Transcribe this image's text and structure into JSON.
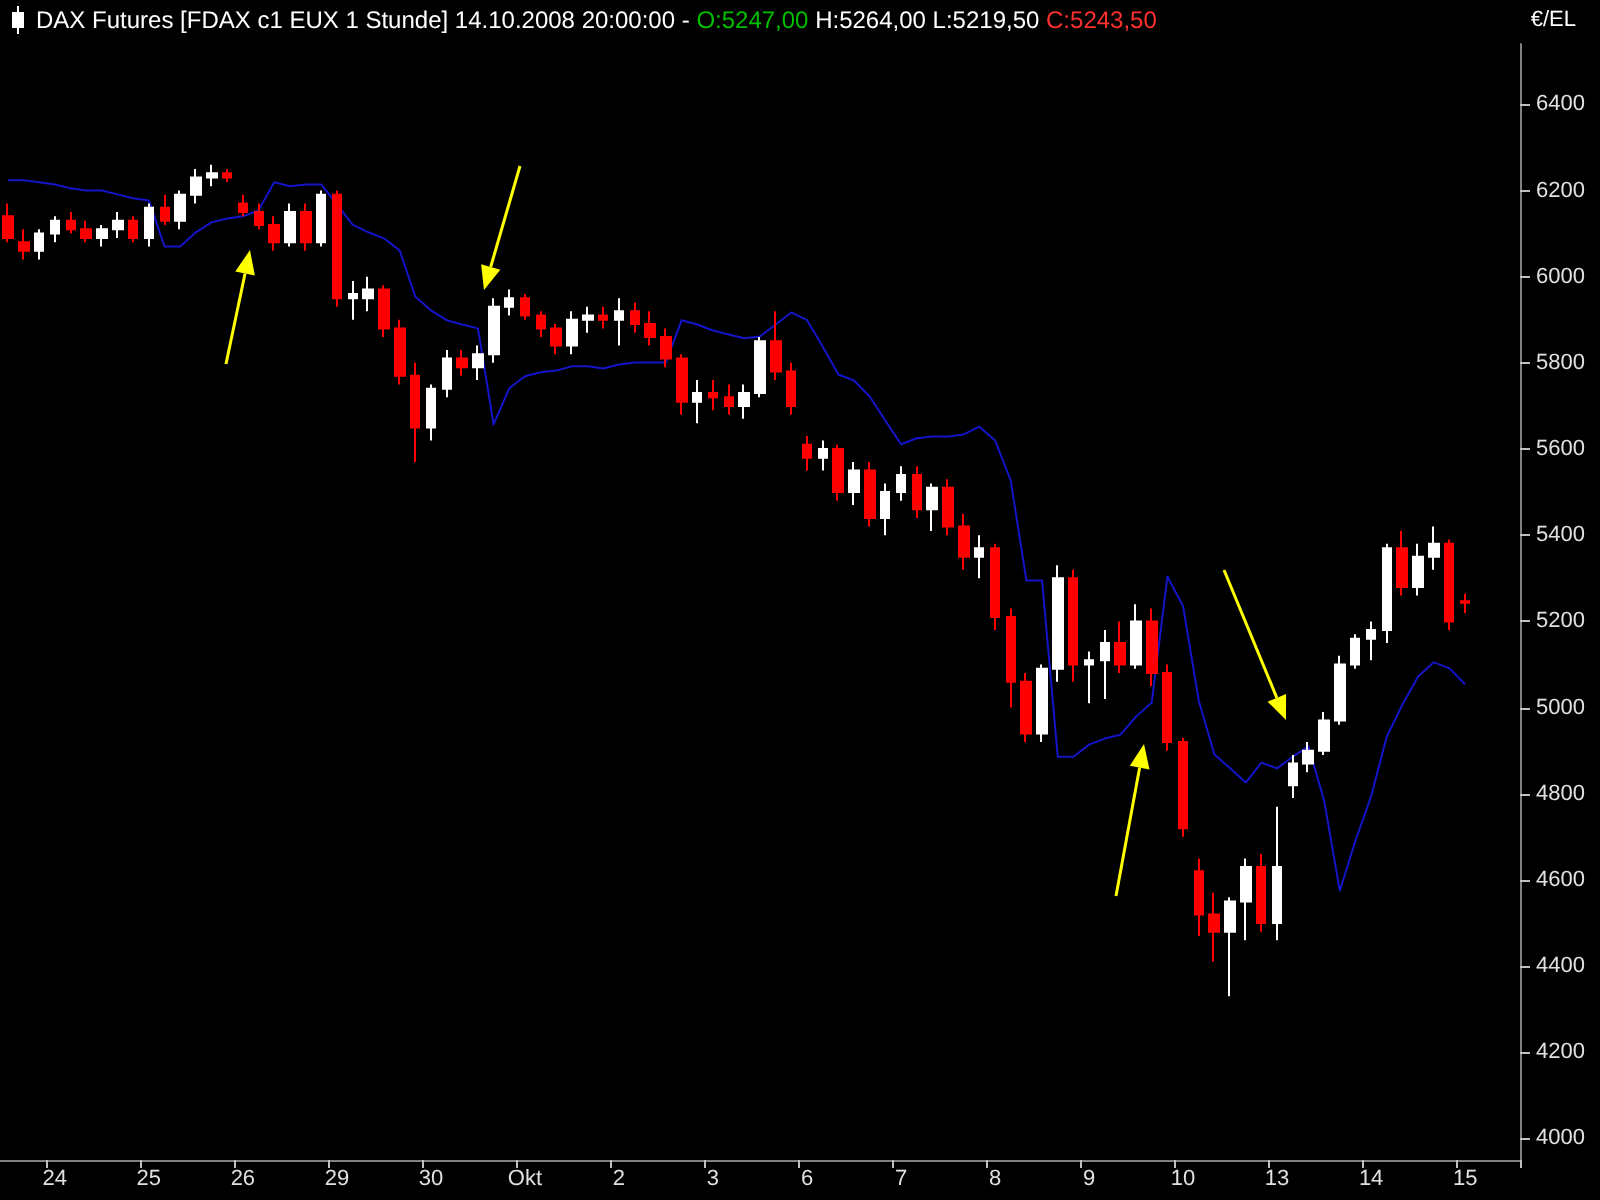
{
  "chart_data": {
    "type": "candlestick",
    "title": "DAX Futures [FDAX c1 EUX  1 Stunde] 14.10.2008 20:00:00 -",
    "annotations": [
      "O:5247,00",
      "H:5264,00",
      "L:5219,50",
      "C:5243,50"
    ],
    "ylabel": "€/EL",
    "categories": [
      null,
      null,
      null,
      "24",
      null,
      null,
      null,
      null,
      null,
      "25",
      null,
      null,
      null,
      null,
      null,
      "26",
      null,
      null,
      null,
      null,
      null,
      "29",
      null,
      null,
      null,
      null,
      null,
      "30",
      null,
      null,
      null,
      null,
      null,
      "Okt",
      null,
      null,
      null,
      null,
      null,
      "2",
      null,
      null,
      null,
      null,
      null,
      "3",
      null,
      null,
      null,
      null,
      null,
      "6",
      null,
      null,
      null,
      null,
      null,
      "7",
      null,
      null,
      null,
      null,
      null,
      "8",
      null,
      null,
      null,
      null,
      null,
      "9",
      null,
      null,
      null,
      null,
      null,
      "10",
      null,
      null,
      null,
      null,
      null,
      "13",
      null,
      null,
      null,
      null,
      null,
      "14",
      null,
      null,
      null,
      null,
      null,
      "15",
      null,
      null,
      null
    ],
    "ohlc": [
      [
        6140,
        6170,
        6080,
        6090
      ],
      [
        6080,
        6110,
        6040,
        6060
      ],
      [
        6060,
        6110,
        6040,
        6100
      ],
      [
        6100,
        6140,
        6080,
        6130
      ],
      [
        6130,
        6150,
        6100,
        6110
      ],
      [
        6110,
        6130,
        6080,
        6090
      ],
      [
        6090,
        6120,
        6070,
        6110
      ],
      [
        6110,
        6150,
        6090,
        6130
      ],
      [
        6130,
        6140,
        6080,
        6090
      ],
      [
        6090,
        6170,
        6070,
        6160
      ],
      [
        6160,
        6190,
        6120,
        6130
      ],
      [
        6130,
        6200,
        6110,
        6190
      ],
      [
        6190,
        6250,
        6170,
        6230
      ],
      [
        6230,
        6260,
        6210,
        6240
      ],
      [
        6240,
        6250,
        6220,
        6230
      ],
      [
        6170,
        6190,
        6140,
        6150
      ],
      [
        6150,
        6170,
        6110,
        6120
      ],
      [
        6120,
        6140,
        6060,
        6080
      ],
      [
        6080,
        6170,
        6070,
        6150
      ],
      [
        6150,
        6170,
        6060,
        6080
      ],
      [
        6080,
        6200,
        6070,
        6190
      ],
      [
        6190,
        6200,
        5930,
        5950
      ],
      [
        5950,
        5990,
        5900,
        5960
      ],
      [
        5950,
        6000,
        5920,
        5970
      ],
      [
        5970,
        5980,
        5860,
        5880
      ],
      [
        5880,
        5900,
        5750,
        5770
      ],
      [
        5770,
        5800,
        5570,
        5650
      ],
      [
        5650,
        5750,
        5620,
        5740
      ],
      [
        5740,
        5830,
        5720,
        5810
      ],
      [
        5810,
        5830,
        5770,
        5790
      ],
      [
        5790,
        5840,
        5760,
        5820
      ],
      [
        5820,
        5950,
        5800,
        5930
      ],
      [
        5930,
        5970,
        5910,
        5950
      ],
      [
        5950,
        5960,
        5900,
        5910
      ],
      [
        5910,
        5920,
        5860,
        5880
      ],
      [
        5880,
        5890,
        5820,
        5840
      ],
      [
        5840,
        5920,
        5820,
        5900
      ],
      [
        5900,
        5930,
        5870,
        5910
      ],
      [
        5910,
        5930,
        5880,
        5900
      ],
      [
        5900,
        5950,
        5840,
        5920
      ],
      [
        5920,
        5940,
        5870,
        5890
      ],
      [
        5890,
        5920,
        5840,
        5860
      ],
      [
        5860,
        5880,
        5790,
        5810
      ],
      [
        5810,
        5820,
        5680,
        5710
      ],
      [
        5710,
        5760,
        5660,
        5730
      ],
      [
        5730,
        5760,
        5690,
        5720
      ],
      [
        5720,
        5750,
        5680,
        5700
      ],
      [
        5700,
        5750,
        5670,
        5730
      ],
      [
        5730,
        5860,
        5720,
        5850
      ],
      [
        5850,
        5920,
        5760,
        5780
      ],
      [
        5780,
        5800,
        5680,
        5700
      ],
      [
        5610,
        5630,
        5550,
        5580
      ],
      [
        5580,
        5620,
        5550,
        5600
      ],
      [
        5600,
        5610,
        5480,
        5500
      ],
      [
        5500,
        5570,
        5470,
        5550
      ],
      [
        5550,
        5570,
        5420,
        5440
      ],
      [
        5440,
        5520,
        5400,
        5500
      ],
      [
        5500,
        5560,
        5480,
        5540
      ],
      [
        5540,
        5560,
        5440,
        5460
      ],
      [
        5460,
        5520,
        5410,
        5510
      ],
      [
        5510,
        5530,
        5400,
        5420
      ],
      [
        5420,
        5450,
        5320,
        5350
      ],
      [
        5350,
        5400,
        5300,
        5370
      ],
      [
        5370,
        5380,
        5180,
        5210
      ],
      [
        5210,
        5230,
        5000,
        5060
      ],
      [
        5060,
        5080,
        4920,
        4940
      ],
      [
        4940,
        5100,
        4920,
        5090
      ],
      [
        5090,
        5330,
        5060,
        5300
      ],
      [
        5300,
        5320,
        5060,
        5100
      ],
      [
        5100,
        5130,
        5010,
        5110
      ],
      [
        5110,
        5180,
        5020,
        5150
      ],
      [
        5150,
        5200,
        5080,
        5100
      ],
      [
        5100,
        5240,
        5090,
        5200
      ],
      [
        5200,
        5230,
        5050,
        5080
      ],
      [
        5080,
        5100,
        4900,
        4920
      ],
      [
        4920,
        4930,
        4700,
        4720
      ],
      [
        4620,
        4650,
        4470,
        4520
      ],
      [
        4520,
        4570,
        4410,
        4480
      ],
      [
        4480,
        4560,
        4330,
        4550
      ],
      [
        4550,
        4650,
        4460,
        4630
      ],
      [
        4630,
        4660,
        4480,
        4500
      ],
      [
        4500,
        4770,
        4460,
        4630
      ],
      [
        4820,
        4890,
        4790,
        4870
      ],
      [
        4870,
        4920,
        4850,
        4900
      ],
      [
        4900,
        4990,
        4890,
        4970
      ],
      [
        4970,
        5120,
        4960,
        5100
      ],
      [
        5100,
        5170,
        5090,
        5160
      ],
      [
        5160,
        5200,
        5110,
        5180
      ],
      [
        5180,
        5380,
        5150,
        5370
      ],
      [
        5370,
        5410,
        5260,
        5280
      ],
      [
        5280,
        5380,
        5260,
        5350
      ],
      [
        5350,
        5420,
        5320,
        5380
      ],
      [
        5380,
        5390,
        5180,
        5200
      ],
      [
        5247,
        5264,
        5219.5,
        5243.5
      ],
      null,
      null,
      null
    ],
    "colors": [
      "#ff0000",
      "#ff0000",
      "#ffffff",
      "#ffffff",
      "#ff0000",
      "#ff0000",
      "#ffffff",
      "#ffffff",
      "#ff0000",
      "#ffffff",
      "#ff0000",
      "#ffffff",
      "#ffffff",
      "#ffffff",
      "#ff0000",
      "#ff0000",
      "#ff0000",
      "#ff0000",
      "#ffffff",
      "#ff0000",
      "#ffffff",
      "#ff0000",
      "#ffffff",
      "#ffffff",
      "#ff0000",
      "#ff0000",
      "#ff0000",
      "#ffffff",
      "#ffffff",
      "#ff0000",
      "#ffffff",
      "#ffffff",
      "#ffffff",
      "#ff0000",
      "#ff0000",
      "#ff0000",
      "#ffffff",
      "#ffffff",
      "#ff0000",
      "#ffffff",
      "#ff0000",
      "#ff0000",
      "#ff0000",
      "#ff0000",
      "#ffffff",
      "#ff0000",
      "#ff0000",
      "#ffffff",
      "#ffffff",
      "#ff0000",
      "#ff0000",
      "#ff0000",
      "#ffffff",
      "#ff0000",
      "#ffffff",
      "#ff0000",
      "#ffffff",
      "#ffffff",
      "#ff0000",
      "#ffffff",
      "#ff0000",
      "#ff0000",
      "#ffffff",
      "#ff0000",
      "#ff0000",
      "#ff0000",
      "#ffffff",
      "#ffffff",
      "#ff0000",
      "#ffffff",
      "#ffffff",
      "#ff0000",
      "#ffffff",
      "#ff0000",
      "#ff0000",
      "#ff0000",
      "#ff0000",
      "#ff0000",
      "#ffffff",
      "#ffffff",
      "#ff0000",
      "#ffffff",
      "#ffffff",
      "#ffffff",
      "#ffffff",
      "#ffffff",
      "#ffffff",
      "#ffffff",
      "#ffffff",
      "#ff0000",
      "#ffffff",
      "#ffffff",
      "#ff0000",
      "#ff0000",
      null,
      null,
      null
    ],
    "series": [
      {
        "type": "line",
        "color": "#1414c8",
        "values": [
          6224,
          6224,
          6219,
          6214,
          6205,
          6200,
          6200,
          6191,
          6182,
          6177,
          6070,
          6070,
          6103,
          6126,
          6135,
          6140,
          6154,
          6219,
          6210,
          6214,
          6214,
          6168,
          6121,
          6103,
          6089,
          6061,
          5954,
          5922,
          5899,
          5889,
          5880,
          5657,
          5741,
          5769,
          5778,
          5782,
          5792,
          5792,
          5787,
          5796,
          5801,
          5801,
          5801,
          5899,
          5889,
          5875,
          5866,
          5857,
          5861,
          5889,
          5917,
          5899,
          5838,
          5773,
          5759,
          5722,
          5666,
          5611,
          5625,
          5629,
          5629,
          5634,
          5652,
          5620,
          5527,
          5295,
          5295,
          4886,
          4886,
          4914,
          4928,
          4937,
          4979,
          5012,
          5304,
          5235,
          5016,
          4891,
          4859,
          4826,
          4872,
          4859,
          4886,
          4910,
          4784,
          4575,
          4691,
          4794,
          4933,
          5007,
          5072,
          5105,
          5091,
          5054,
          null,
          null,
          null
        ]
      }
    ],
    "ylim": [
      3950,
      6540
    ],
    "yticks": [
      4000,
      4200,
      4400,
      4600,
      4800,
      5000,
      5200,
      5400,
      5600,
      5800,
      6000,
      6200,
      6400
    ],
    "line_style": "solid"
  }
}
